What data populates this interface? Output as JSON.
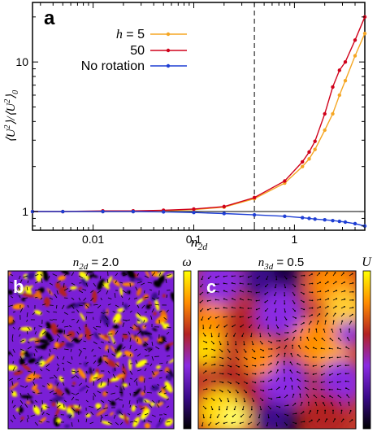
{
  "panel_a_label": "a",
  "panel_b_label": "b",
  "panel_c_label": "c",
  "chart_data": {
    "type": "line",
    "xscale": "log",
    "yscale": "log",
    "xlim": [
      0.0025,
      5
    ],
    "ylim": [
      0.75,
      25
    ],
    "xlabel": "n_2d",
    "ylabel": "⟨U²⟩/⟨U²⟩₀",
    "xticks": [
      {
        "value": 0.01,
        "label": "0.01"
      },
      {
        "value": 0.1,
        "label": "0.1"
      },
      {
        "value": 1,
        "label": "1"
      }
    ],
    "yticks": [
      {
        "value": 1,
        "label": "1"
      },
      {
        "value": 10,
        "label": "10"
      }
    ],
    "reference_line_y": 1,
    "dashed_vline_x": 0.4,
    "legend_position": "top-left",
    "series": [
      {
        "name": "h = 5",
        "color": "#f5a623",
        "x": [
          0.0025,
          0.005,
          0.0125,
          0.025,
          0.05,
          0.1,
          0.2,
          0.4,
          0.8,
          1.2,
          1.4,
          1.6,
          2.0,
          2.4,
          2.8,
          3.2,
          4.0,
          5.0
        ],
        "y": [
          1.0,
          1.0,
          1.0,
          1.0,
          1.01,
          1.03,
          1.07,
          1.22,
          1.55,
          2.0,
          2.25,
          2.6,
          3.5,
          4.5,
          6.0,
          7.5,
          11.0,
          15.5
        ]
      },
      {
        "name": "50",
        "color": "#d0021b",
        "x": [
          0.0025,
          0.005,
          0.0125,
          0.025,
          0.05,
          0.1,
          0.2,
          0.4,
          0.8,
          1.2,
          1.4,
          1.6,
          2.0,
          2.4,
          2.8,
          3.2,
          4.0,
          5.0
        ],
        "y": [
          1.0,
          1.0,
          1.01,
          1.01,
          1.02,
          1.04,
          1.08,
          1.24,
          1.6,
          2.15,
          2.5,
          2.95,
          4.5,
          6.8,
          8.8,
          10.0,
          14.0,
          20.0
        ]
      },
      {
        "name": "No rotation",
        "color": "#1f3fd4",
        "x": [
          0.0025,
          0.005,
          0.0125,
          0.025,
          0.05,
          0.1,
          0.2,
          0.4,
          0.8,
          1.2,
          1.4,
          1.6,
          2.0,
          2.4,
          2.8,
          3.2,
          4.0,
          5.0
        ],
        "y": [
          1.0,
          1.0,
          1.0,
          1.0,
          0.995,
          0.985,
          0.97,
          0.95,
          0.93,
          0.91,
          0.9,
          0.89,
          0.88,
          0.87,
          0.86,
          0.85,
          0.83,
          0.8
        ]
      }
    ]
  },
  "legend": {
    "h_symbol": "h",
    "h_value": " = 5",
    "label_50": "50",
    "label_norot": "No rotation"
  },
  "panel_b": {
    "title_sym": "n",
    "title_sub": "2d",
    "title_val": " =  2.0",
    "colorbar_symbol": "ω",
    "colormap": [
      "#000000",
      "#3a0a8a",
      "#8a2be2",
      "#b22222",
      "#ff8c00",
      "#ffff00"
    ]
  },
  "panel_c": {
    "title_sym": "n",
    "title_sub": "3d",
    "title_val": " =  0.5",
    "colorbar_symbol": "U",
    "colormap": [
      "#000000",
      "#3a0a8a",
      "#8a2be2",
      "#b22222",
      "#ff8c00",
      "#ffff00"
    ]
  }
}
